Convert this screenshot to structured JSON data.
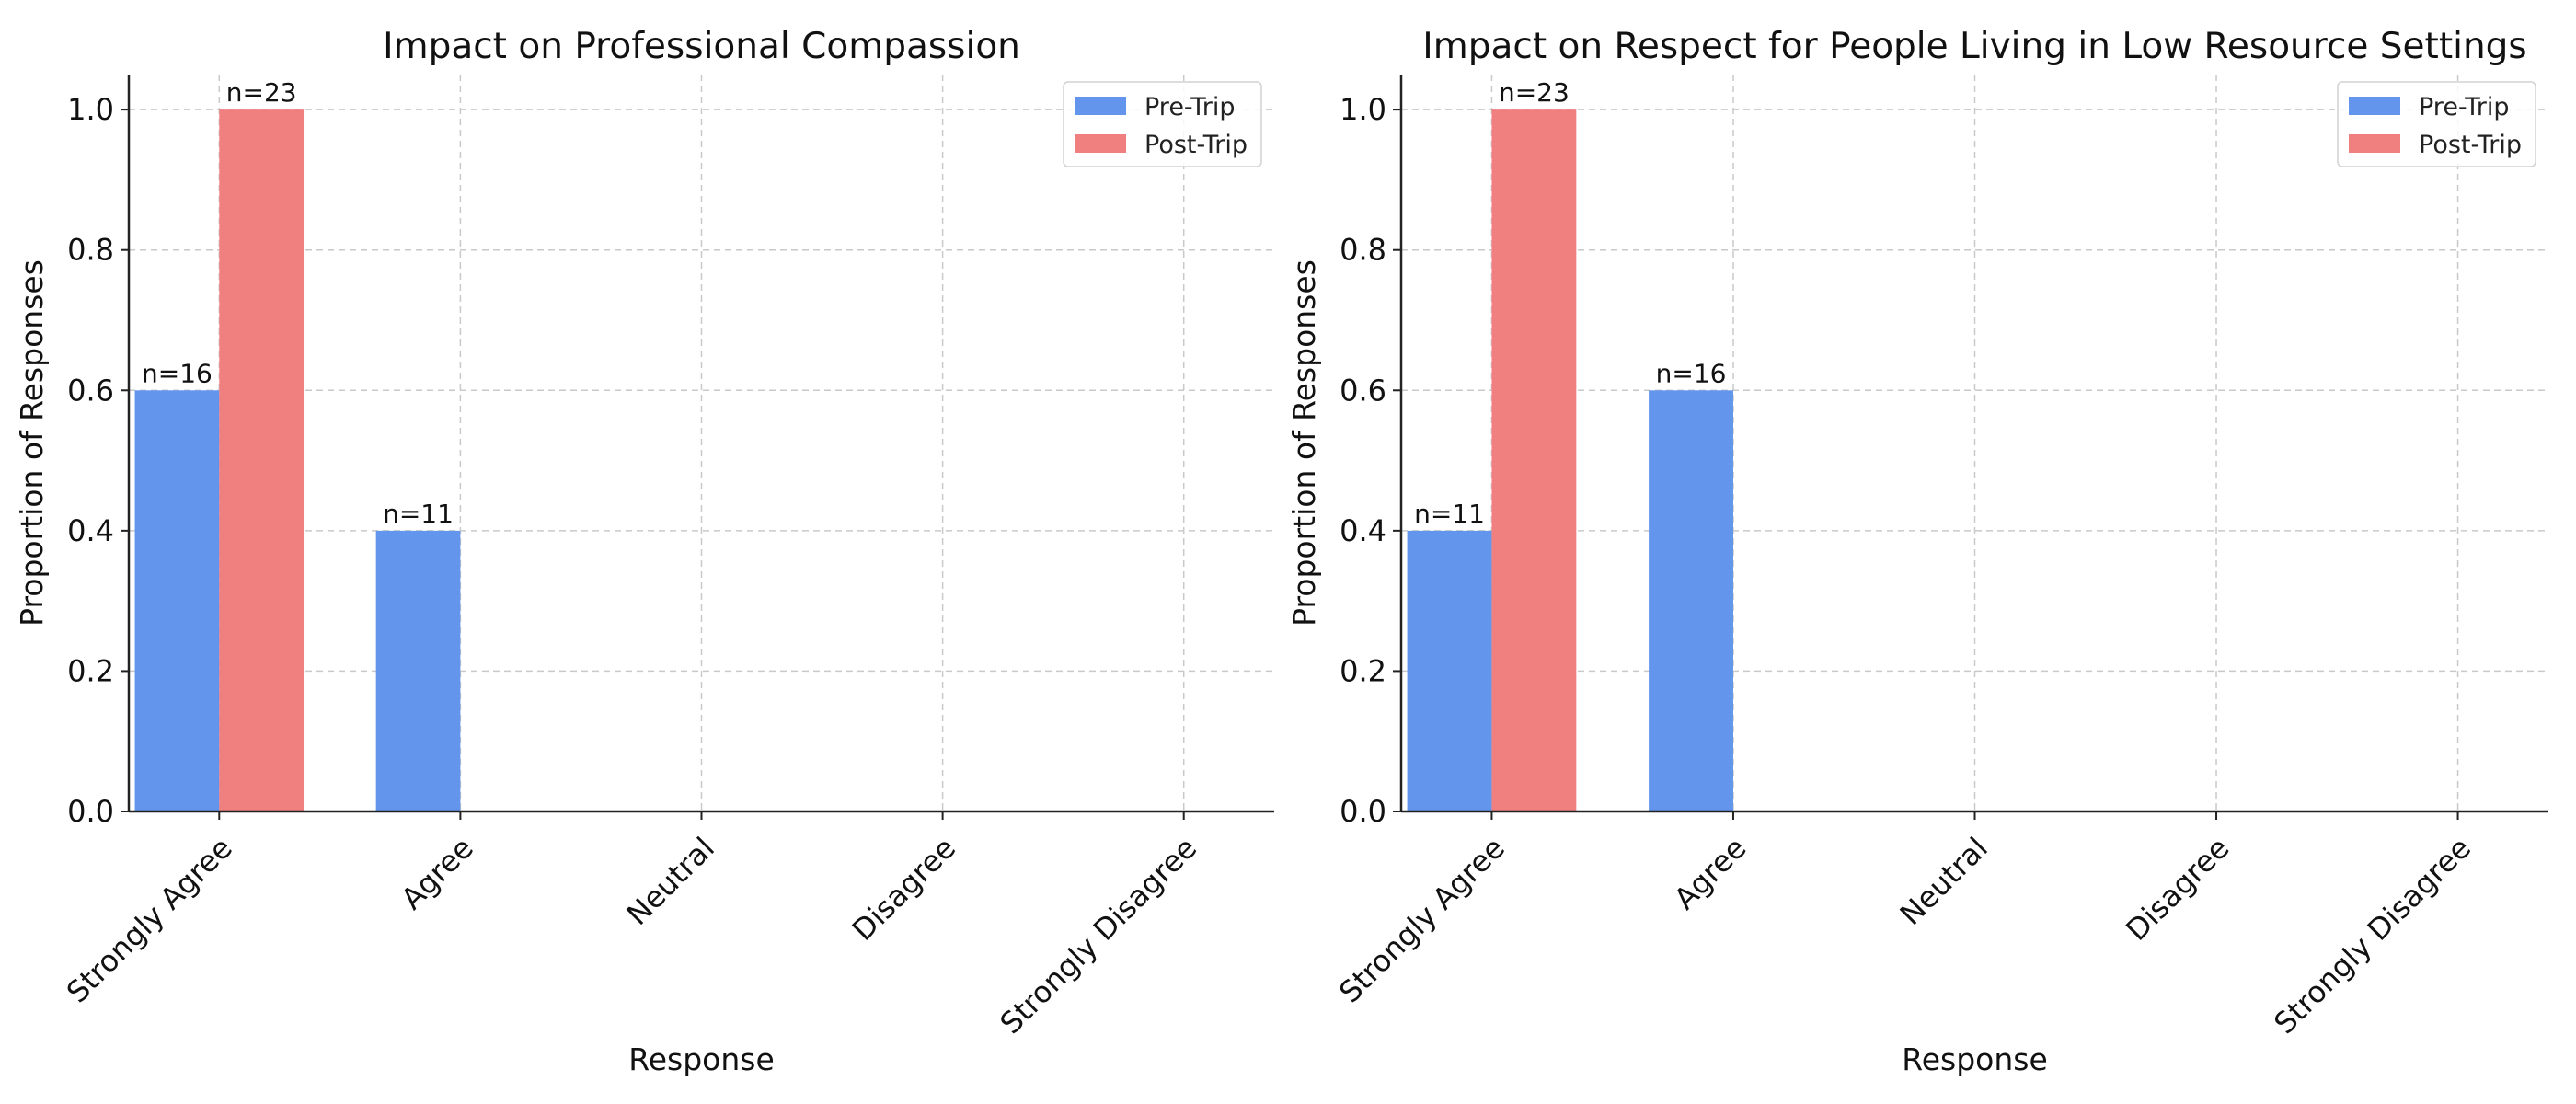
{
  "chart_data": [
    {
      "type": "bar",
      "title": "Impact on Professional Compassion",
      "xlabel": "Response",
      "ylabel": "Proportion of Responses",
      "ylim": [
        0,
        1.05
      ],
      "yticks": [
        "0.0",
        "0.2",
        "0.4",
        "0.6",
        "0.8",
        "1.0"
      ],
      "categories": [
        "Strongly Agree",
        "Agree",
        "Neutral",
        "Disagree",
        "Strongly Disagree"
      ],
      "series": [
        {
          "name": "Pre-Trip",
          "color": "#6495ED",
          "values": [
            0.6,
            0.4,
            0,
            0,
            0
          ],
          "labels": [
            "n=16",
            "n=11",
            null,
            null,
            null
          ]
        },
        {
          "name": "Post-Trip",
          "color": "#F08080",
          "values": [
            1.0,
            0,
            0,
            0,
            0
          ],
          "labels": [
            "n=23",
            null,
            null,
            null,
            null
          ]
        }
      ],
      "grid": true,
      "legend": "top-right"
    },
    {
      "type": "bar",
      "title": "Impact on Respect for People Living in Low Resource Settings",
      "xlabel": "Response",
      "ylabel": "Proportion of Responses",
      "ylim": [
        0,
        1.05
      ],
      "yticks": [
        "0.0",
        "0.2",
        "0.4",
        "0.6",
        "0.8",
        "1.0"
      ],
      "categories": [
        "Strongly Agree",
        "Agree",
        "Neutral",
        "Disagree",
        "Strongly Disagree"
      ],
      "series": [
        {
          "name": "Pre-Trip",
          "color": "#6495ED",
          "values": [
            0.4,
            0.6,
            0,
            0,
            0
          ],
          "labels": [
            "n=11",
            "n=16",
            null,
            null,
            null
          ]
        },
        {
          "name": "Post-Trip",
          "color": "#F08080",
          "values": [
            1.0,
            0,
            0,
            0,
            0
          ],
          "labels": [
            "n=23",
            null,
            null,
            null,
            null
          ]
        }
      ],
      "grid": true,
      "legend": "top-right"
    }
  ]
}
